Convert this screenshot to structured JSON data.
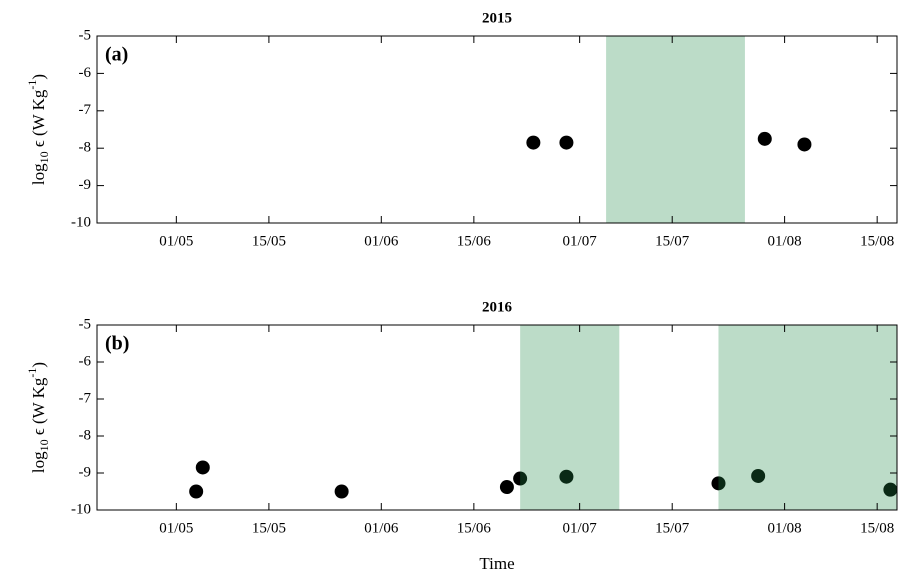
{
  "chart_data": [
    {
      "type": "scatter",
      "title": "2015",
      "panel_label": "(a)",
      "ylabel": {
        "base": "log",
        "sub": "10",
        "mid": " ϵ (W Kg",
        "sup": "-1",
        "end": ")"
      },
      "x": [
        "24/06",
        "29/06",
        "29/07",
        "04/08"
      ],
      "values": [
        -7.85,
        -7.85,
        -7.75,
        -7.9
      ],
      "color": "#000000",
      "shaded": [
        [
          "05/07",
          "26/07"
        ]
      ],
      "shade_color": "#208a48",
      "xlim": [
        "19/04",
        "18/08"
      ],
      "xticks": [
        "01/05",
        "15/05",
        "01/06",
        "15/06",
        "01/07",
        "15/07",
        "01/08",
        "15/08"
      ],
      "ylim": [
        -10,
        -5
      ],
      "yticks": [
        -10,
        -9,
        -8,
        -7,
        -6,
        -5
      ]
    },
    {
      "type": "scatter",
      "title": "2016",
      "panel_label": "(b)",
      "xlabel": "Time",
      "ylabel": {
        "base": "log",
        "sub": "10",
        "mid": " ϵ (W Kg",
        "sup": "-1",
        "end": ")"
      },
      "x": [
        "04/05",
        "05/05",
        "26/05",
        "20/06",
        "22/06",
        "29/06",
        "22/07",
        "28/07",
        "17/08"
      ],
      "values": [
        -9.5,
        -8.85,
        -9.5,
        -9.38,
        -9.15,
        -9.1,
        -9.28,
        -9.08,
        -9.45
      ],
      "color": "#000000",
      "shaded": [
        [
          "22/06",
          "07/07"
        ],
        [
          "22/07",
          "18/08"
        ]
      ],
      "shade_color": "#208a48",
      "xlim": [
        "19/04",
        "18/08"
      ],
      "xticks": [
        "01/05",
        "15/05",
        "01/06",
        "15/06",
        "01/07",
        "15/07",
        "01/08",
        "15/08"
      ],
      "ylim": [
        -10,
        -5
      ],
      "yticks": [
        -10,
        -9,
        -8,
        -7,
        -6,
        -5
      ]
    }
  ]
}
